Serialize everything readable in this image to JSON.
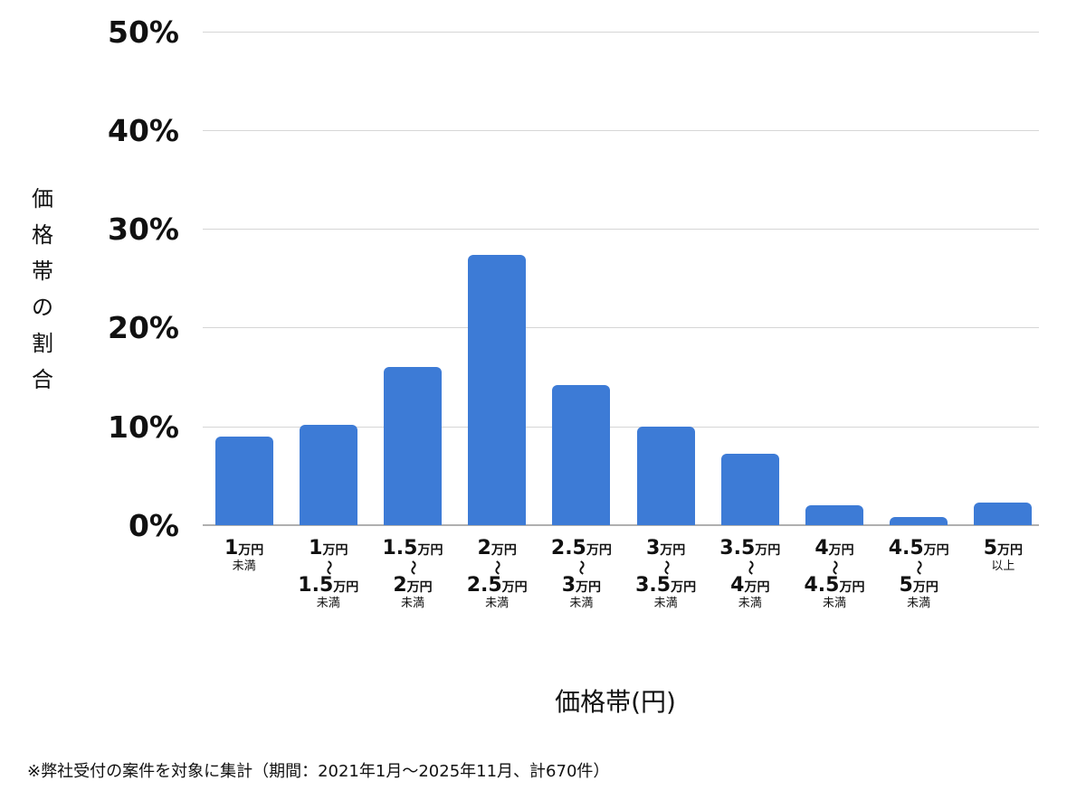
{
  "chart_data": {
    "type": "bar",
    "title": "",
    "xlabel": "価格帯(円)",
    "ylabel": "価格帯の割合",
    "ylim": [
      0,
      50
    ],
    "yticks": [
      "0%",
      "10%",
      "20%",
      "30%",
      "40%",
      "50%"
    ],
    "grid": true,
    "legend": null,
    "categories": [
      "1万円未満",
      "1万円〜1.5万円未満",
      "1.5万円〜2万円未満",
      "2万円〜2.5万円未満",
      "2.5万円〜3万円未満",
      "3万円〜3.5万円未満",
      "3.5万円〜4万円未満",
      "4万円〜4.5万円未満",
      "4.5万円〜5万円未満",
      "5万円以上"
    ],
    "values": [
      9.0,
      10.2,
      16.0,
      27.4,
      14.2,
      10.0,
      7.2,
      2.0,
      0.8,
      2.3
    ],
    "color": "#3d7bd6"
  },
  "axis": {
    "y_ticks": [
      "50%",
      "40%",
      "30%",
      "20%",
      "10%",
      "0%"
    ],
    "y_label_chars": [
      "価",
      "格",
      "帯",
      "の",
      "割",
      "合"
    ],
    "x_title": "価格帯(円)"
  },
  "xlabels": [
    {
      "from": "1",
      "to": null,
      "suffix": "未満"
    },
    {
      "from": "1",
      "to": "1.5",
      "suffix": "未満"
    },
    {
      "from": "1.5",
      "to": "2",
      "suffix": "未満"
    },
    {
      "from": "2",
      "to": "2.5",
      "suffix": "未満"
    },
    {
      "from": "2.5",
      "to": "3",
      "suffix": "未満"
    },
    {
      "from": "3",
      "to": "3.5",
      "suffix": "未満"
    },
    {
      "from": "3.5",
      "to": "4",
      "suffix": "未満"
    },
    {
      "from": "4",
      "to": "4.5",
      "suffix": "未満"
    },
    {
      "from": "4.5",
      "to": "5",
      "suffix": "未満"
    },
    {
      "from": "5",
      "to": null,
      "suffix": "以上"
    }
  ],
  "unit": "万円",
  "tilde": "〜",
  "note": "※弊社受付の案件を対象に集計（期間：2021年1月〜2025年11月、計670件）"
}
